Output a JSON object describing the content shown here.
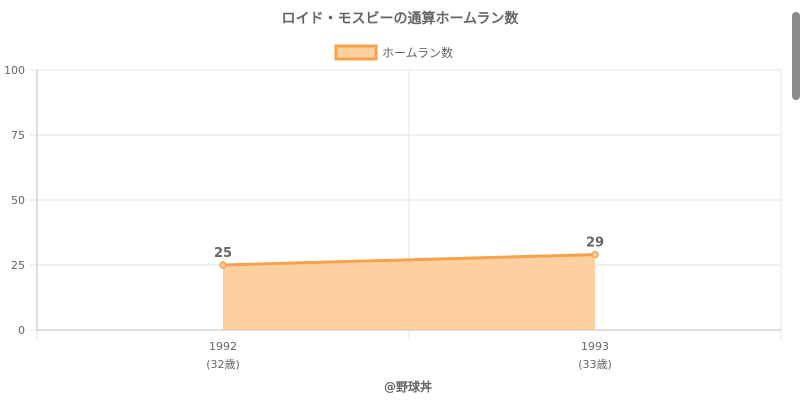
{
  "chart_data": {
    "type": "area",
    "title": "ロイド・モスビーの通算ホームラン数",
    "categories": [
      "1992",
      "1993"
    ],
    "sublabels": [
      "(32歳)",
      "(33歳)"
    ],
    "series": [
      {
        "name": "ホームラン数",
        "values": [
          25,
          29
        ]
      }
    ],
    "ylim": [
      0,
      100
    ],
    "yticks": [
      "0",
      "25",
      "50",
      "75",
      "100"
    ],
    "grid": true,
    "legend": "top",
    "colors": {
      "line": "#f7a14a",
      "fill": "#fdd0a0"
    }
  },
  "credit": "@野球丼"
}
